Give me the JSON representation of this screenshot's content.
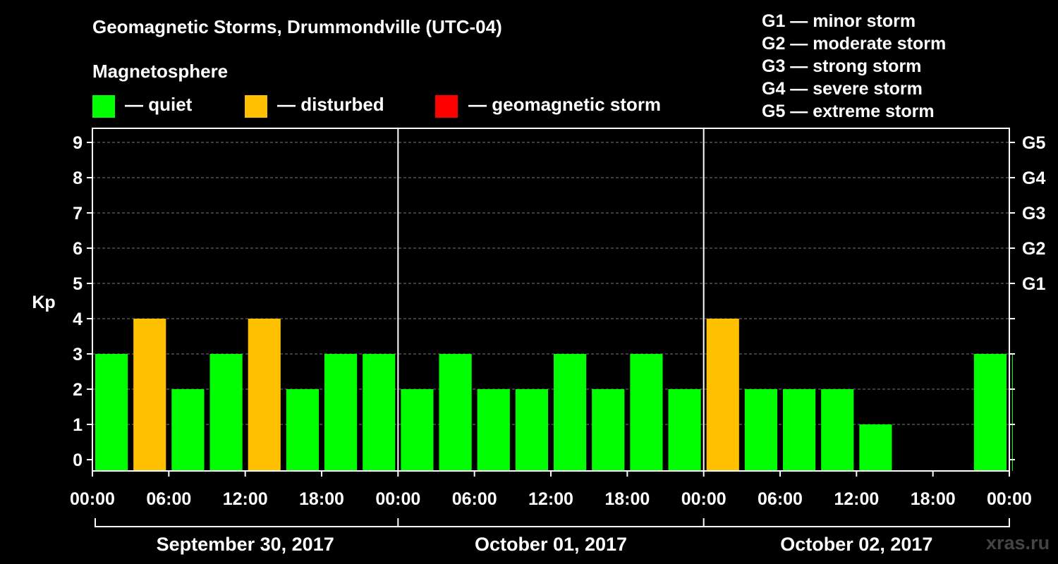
{
  "title": "Geomagnetic Storms, Drummondville (UTC-04)",
  "legend": {
    "heading": "Magnetosphere",
    "items": [
      {
        "label": "— quiet",
        "color": "#00ff00"
      },
      {
        "label": "— disturbed",
        "color": "#ffc000"
      },
      {
        "label": "— geomagnetic storm",
        "color": "#ff0000"
      }
    ]
  },
  "g_scale": [
    "G1 — minor storm",
    "G2 — moderate storm",
    "G3 — strong storm",
    "G4 — severe storm",
    "G5 — extreme storm"
  ],
  "watermark": "xras.ru",
  "chart_data": {
    "type": "bar",
    "ylabel": "Kp",
    "ylim": [
      0,
      9
    ],
    "yticks": [
      "0",
      "1",
      "2",
      "3",
      "4",
      "5",
      "6",
      "7",
      "8",
      "9"
    ],
    "g_levels": [
      {
        "label": "G1",
        "kp": 5
      },
      {
        "label": "G2",
        "kp": 6
      },
      {
        "label": "G3",
        "kp": 7
      },
      {
        "label": "G4",
        "kp": 8
      },
      {
        "label": "G5",
        "kp": 9
      }
    ],
    "x_tick_labels": [
      "00:00",
      "06:00",
      "12:00",
      "18:00",
      "00:00",
      "06:00",
      "12:00",
      "18:00",
      "00:00",
      "06:00",
      "12:00",
      "18:00",
      "00:00"
    ],
    "days": [
      "September 30, 2017",
      "October 01, 2017",
      "October 02, 2017"
    ],
    "interval_hours": 3,
    "colors": {
      "quiet": "#00ff00",
      "disturbed": "#ffc000",
      "storm": "#ff0000"
    },
    "grid": true,
    "series": [
      {
        "values": [
          3,
          4,
          2,
          3,
          4,
          2,
          3,
          3,
          2,
          3,
          2,
          2,
          3,
          2,
          3,
          2,
          4,
          2,
          2,
          2,
          1,
          null,
          null,
          3,
          3
        ]
      }
    ]
  }
}
